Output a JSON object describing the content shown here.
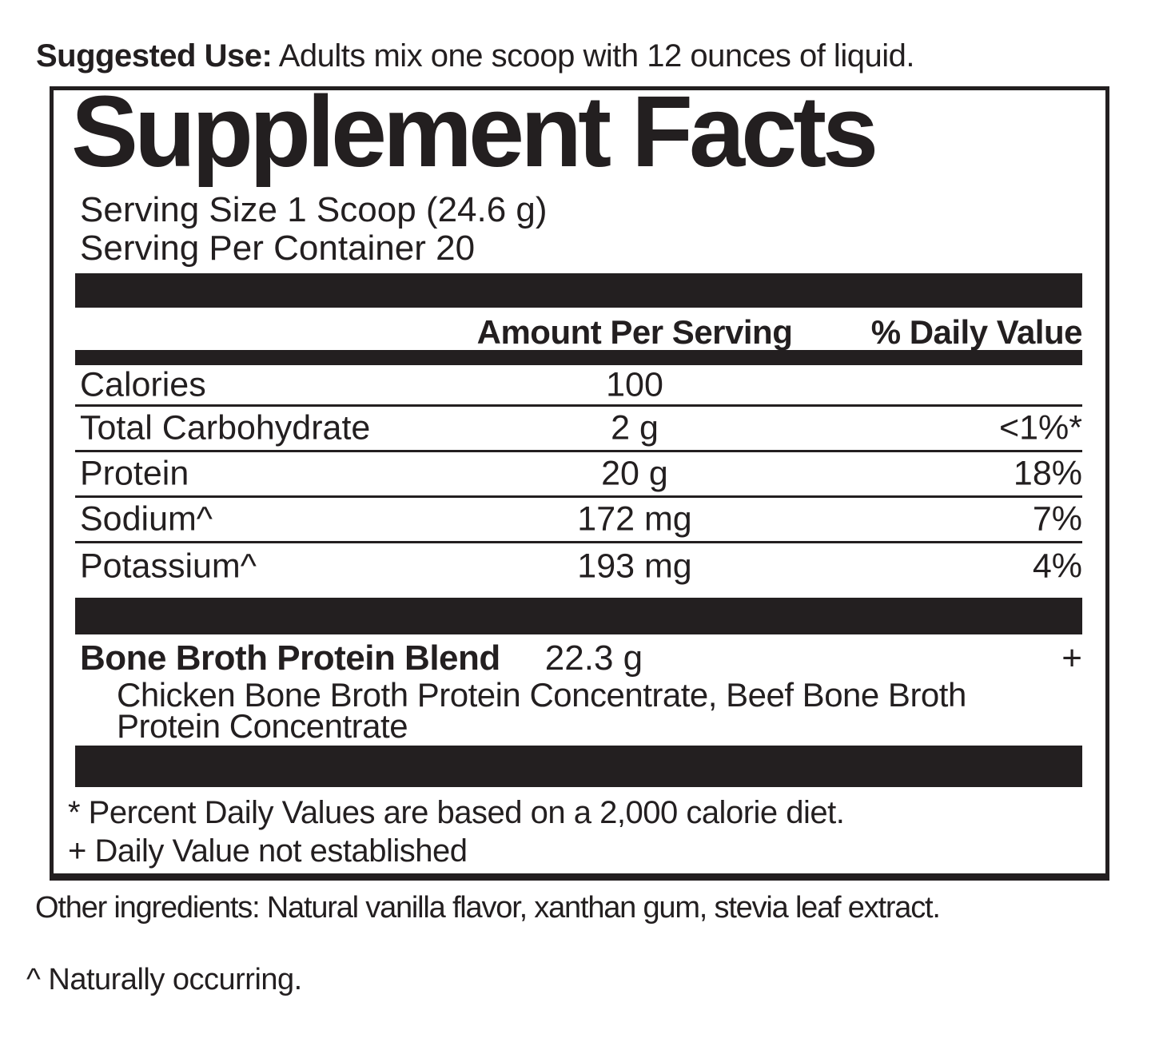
{
  "colors": {
    "ink": "#231f20"
  },
  "suggested_use": {
    "label": "Suggested Use:",
    "text": "Adults mix one scoop with 12 ounces of liquid."
  },
  "panel": {
    "title": "Supplement Facts",
    "serving_size": "Serving Size 1 Scoop (24.6 g)",
    "servings_per_container": "Serving Per Container 20"
  },
  "table": {
    "amount_header": "Amount Per Serving",
    "dv_header": "% Daily Value",
    "rows": [
      {
        "label": "Calories",
        "amount": "100",
        "dv": ""
      },
      {
        "label": "Total Carbohydrate",
        "amount": "2 g",
        "dv": "<1%*"
      },
      {
        "label": "Protein",
        "amount": "20 g",
        "dv": "18%"
      },
      {
        "label": "Sodium^",
        "amount": "172 mg",
        "dv": "7%"
      },
      {
        "label": "Potassium^",
        "amount": "193 mg",
        "dv": "4%"
      }
    ]
  },
  "blend": {
    "name": "Bone Broth Protein Blend",
    "amount": "22.3 g",
    "dv": "+",
    "ingredients_lines": [
      "Chicken Bone Broth Protein Concentrate, Beef Bone Broth",
      "Protein Concentrate"
    ]
  },
  "footnotes": {
    "percent_daily_value": "* Percent Daily Values are based on a 2,000 calorie diet.",
    "not_established": "+ Daily Value not established"
  },
  "other_ingredients": "Other ingredients: Natural vanilla flavor, xanthan gum, stevia leaf extract.",
  "naturally_occurring": "^ Naturally occurring."
}
